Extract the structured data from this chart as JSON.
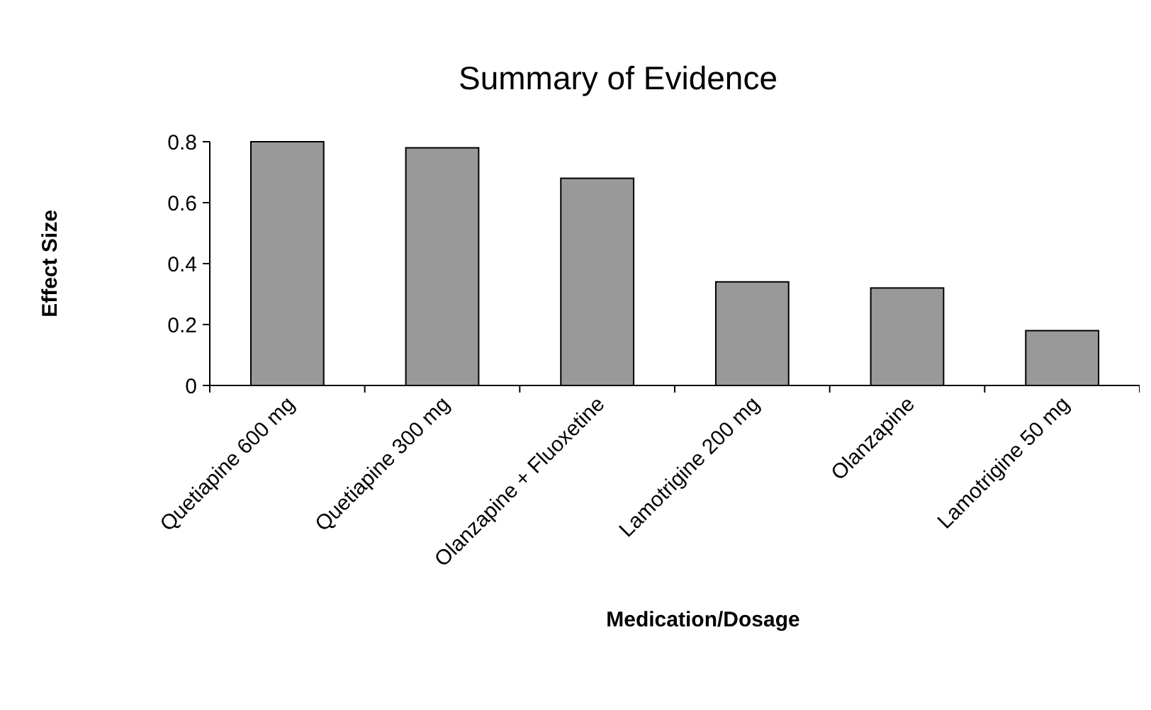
{
  "chart_data": {
    "type": "bar",
    "title": "Summary of Evidence",
    "xlabel": "Medication/Dosage",
    "ylabel": "Effect Size",
    "categories": [
      "Quetiapine 600 mg",
      "Quetiapine 300 mg",
      "Olanzapine + Fluoxetine",
      "Lamotrigine 200 mg",
      "Olanzapine",
      "Lamotrigine 50 mg"
    ],
    "values": [
      0.8,
      0.78,
      0.68,
      0.34,
      0.32,
      0.18
    ],
    "color": "#999999",
    "ylim": [
      0,
      0.8
    ],
    "yticks": [
      {
        "value": 0,
        "label": "0"
      },
      0.2,
      0.4,
      0.6,
      0.8
    ],
    "grid": false
  }
}
